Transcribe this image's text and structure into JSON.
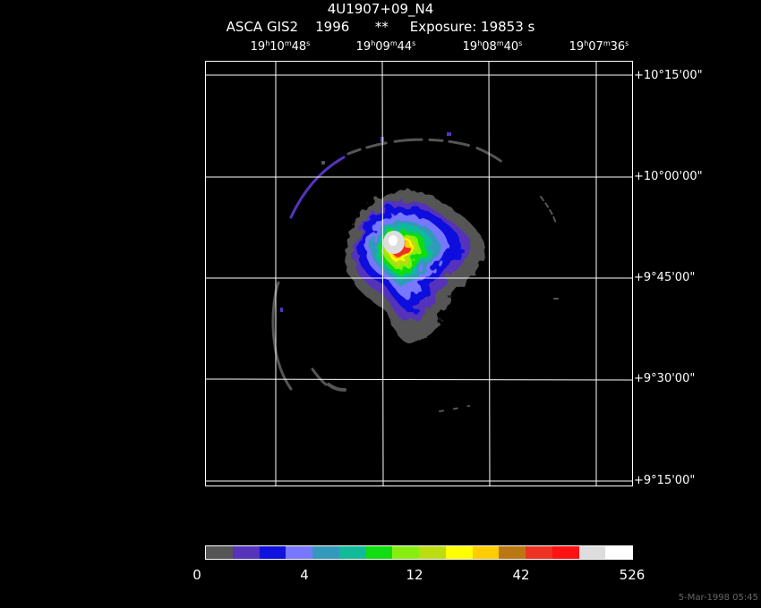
{
  "header": {
    "title": "4U1907+09_N4",
    "subtitle": "ASCA GIS2    1996      **     Exposure: 19853 s"
  },
  "ra_ticks": [
    {
      "h": "19",
      "m": "10",
      "s": "48"
    },
    {
      "h": "19",
      "m": "09",
      "s": "44"
    },
    {
      "h": "19",
      "m": "08",
      "s": "40"
    },
    {
      "h": "19",
      "m": "07",
      "s": "36"
    }
  ],
  "dec_ticks": [
    {
      "d": "+10",
      "m": "15",
      "s": "00"
    },
    {
      "d": "+10",
      "m": "00",
      "s": "00"
    },
    {
      "d": "+9",
      "m": "45",
      "s": "00"
    },
    {
      "d": "+9",
      "m": "30",
      "s": "00"
    },
    {
      "d": "+9",
      "m": "15",
      "s": "00"
    }
  ],
  "colorbar": {
    "labels": [
      "0",
      "4",
      "12",
      "42",
      "526"
    ],
    "colors": [
      "#555555",
      "#5533bb",
      "#1111dd",
      "#7777ff",
      "#3399bb",
      "#11bb99",
      "#11dd11",
      "#88ee11",
      "#bbdd11",
      "#ffff00",
      "#ffcc00",
      "#bb7711",
      "#ee3322",
      "#ff1111",
      "#dddddd",
      "#ffffff"
    ]
  },
  "timestamp": "5-Mar-1998 05:45"
}
